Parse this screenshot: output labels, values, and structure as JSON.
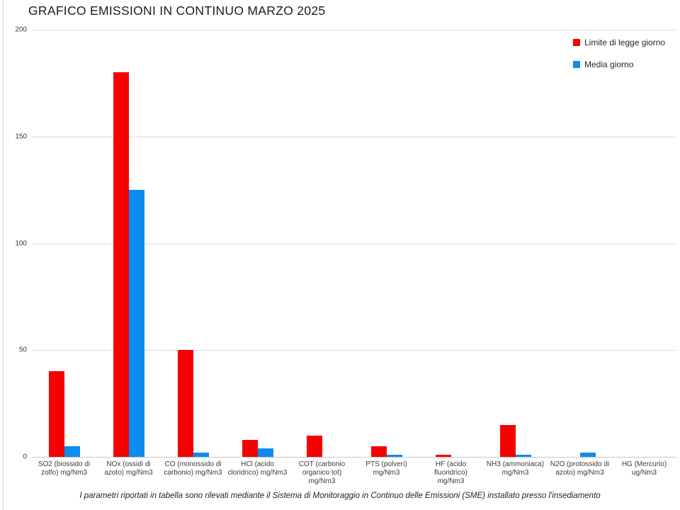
{
  "page": {
    "title": "GRAFICO EMISSIONI IN CONTINUO MARZO 2025",
    "footnote": "I parametri riportati in tabella sono rilevati mediante il Sistema di Monitoraggio in Continuo delle Emissioni (SME) installato presso l'insediamento"
  },
  "chart_data": {
    "type": "bar",
    "title": "GRAFICO EMISSIONI IN CONTINUO MARZO 2025",
    "categories": [
      "SO2 (biossido di zolfo) mg/Nm3",
      "NOx (ossidi di azoto) mg/Nm3",
      "CO (monossido di carbonio) mg/Nm3",
      "HCl (acido cloridrico) mg/Nm3",
      "COT (carbonio organico tot) mg/Nm3",
      "PTS (polveri) mg/Nm3",
      "HF (acido fluoridrico) mg/Nm3",
      "NH3 (ammoniaca) mg/Nm3",
      "N2O (protossido di azoto) mg/Nm3",
      "HG (Mercurio) ug/Nm3"
    ],
    "series": [
      {
        "name": "Limite di legge giorno",
        "color": "#f70000",
        "values": [
          40,
          180,
          50,
          8,
          10,
          5,
          1,
          15,
          0,
          0
        ]
      },
      {
        "name": "Media giorno",
        "color": "#0b8cee",
        "values": [
          5,
          125,
          2,
          4,
          0,
          1,
          0,
          1,
          2,
          0
        ]
      }
    ],
    "ylim": [
      0,
      200
    ],
    "yticks": [
      0,
      50,
      100,
      150,
      200
    ],
    "grid": true,
    "gridline_color": "#d9d9d9",
    "legend_position": "top-right",
    "xlabel": "",
    "ylabel": ""
  }
}
